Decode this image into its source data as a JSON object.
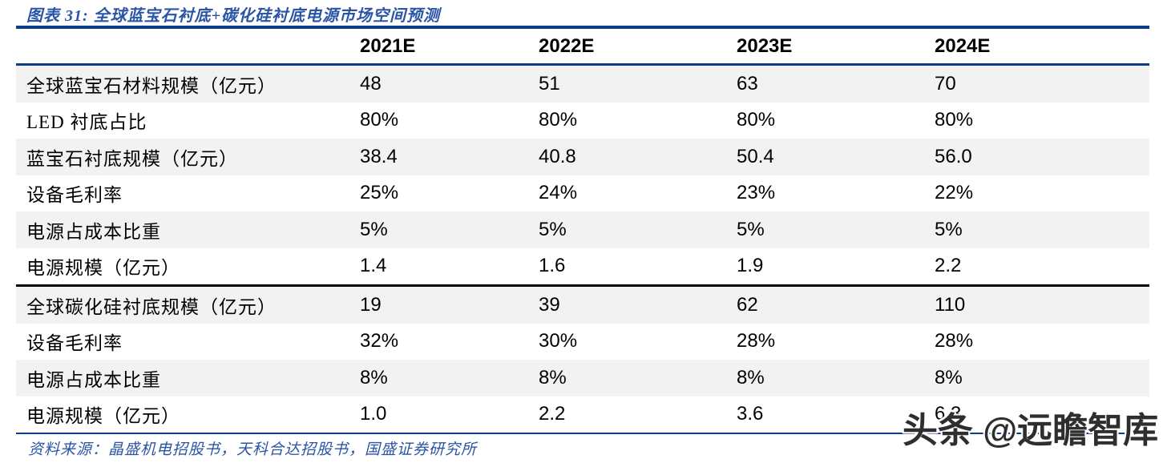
{
  "title": "图表 31:  全球蓝宝石衬底+碳化硅衬底电源市场空间预测",
  "table": {
    "corner_label": "",
    "columns": [
      "2021E",
      "2022E",
      "2023E",
      "2024E"
    ],
    "rows": [
      {
        "label": "全球蓝宝石材料规模（亿元）",
        "values": [
          "48",
          "51",
          "63",
          "70"
        ]
      },
      {
        "label": "LED 衬底占比",
        "values": [
          "80%",
          "80%",
          "80%",
          "80%"
        ]
      },
      {
        "label": "蓝宝石衬底规模（亿元）",
        "values": [
          "38.4",
          "40.8",
          "50.4",
          "56.0"
        ]
      },
      {
        "label": "设备毛利率",
        "values": [
          "25%",
          "24%",
          "23%",
          "22%"
        ]
      },
      {
        "label": "电源占成本比重",
        "values": [
          "5%",
          "5%",
          "5%",
          "5%"
        ]
      },
      {
        "label": "电源规模（亿元）",
        "values": [
          "1.4",
          "1.6",
          "1.9",
          "2.2"
        ]
      },
      {
        "label": "全球碳化硅衬底规模（亿元）",
        "values": [
          "19",
          "39",
          "62",
          "110"
        ]
      },
      {
        "label": "设备毛利率",
        "values": [
          "32%",
          "30%",
          "28%",
          "28%"
        ]
      },
      {
        "label": "电源占成本比重",
        "values": [
          "8%",
          "8%",
          "8%",
          "8%"
        ]
      },
      {
        "label": "电源规模（亿元）",
        "values": [
          "1.0",
          "2.2",
          "3.6",
          "6.3"
        ]
      }
    ]
  },
  "source": "资料来源：晶盛机电招股书，天科合达招股书，国盛证券研究所",
  "watermark": "头条 @远瞻智库",
  "colors": {
    "accent_navy": "#0d3d8a",
    "title_blue": "#2a55a5",
    "row_shade": "#f2f2f2",
    "section_divider": "#000000",
    "watermark_gray": "#2e2e2e"
  }
}
